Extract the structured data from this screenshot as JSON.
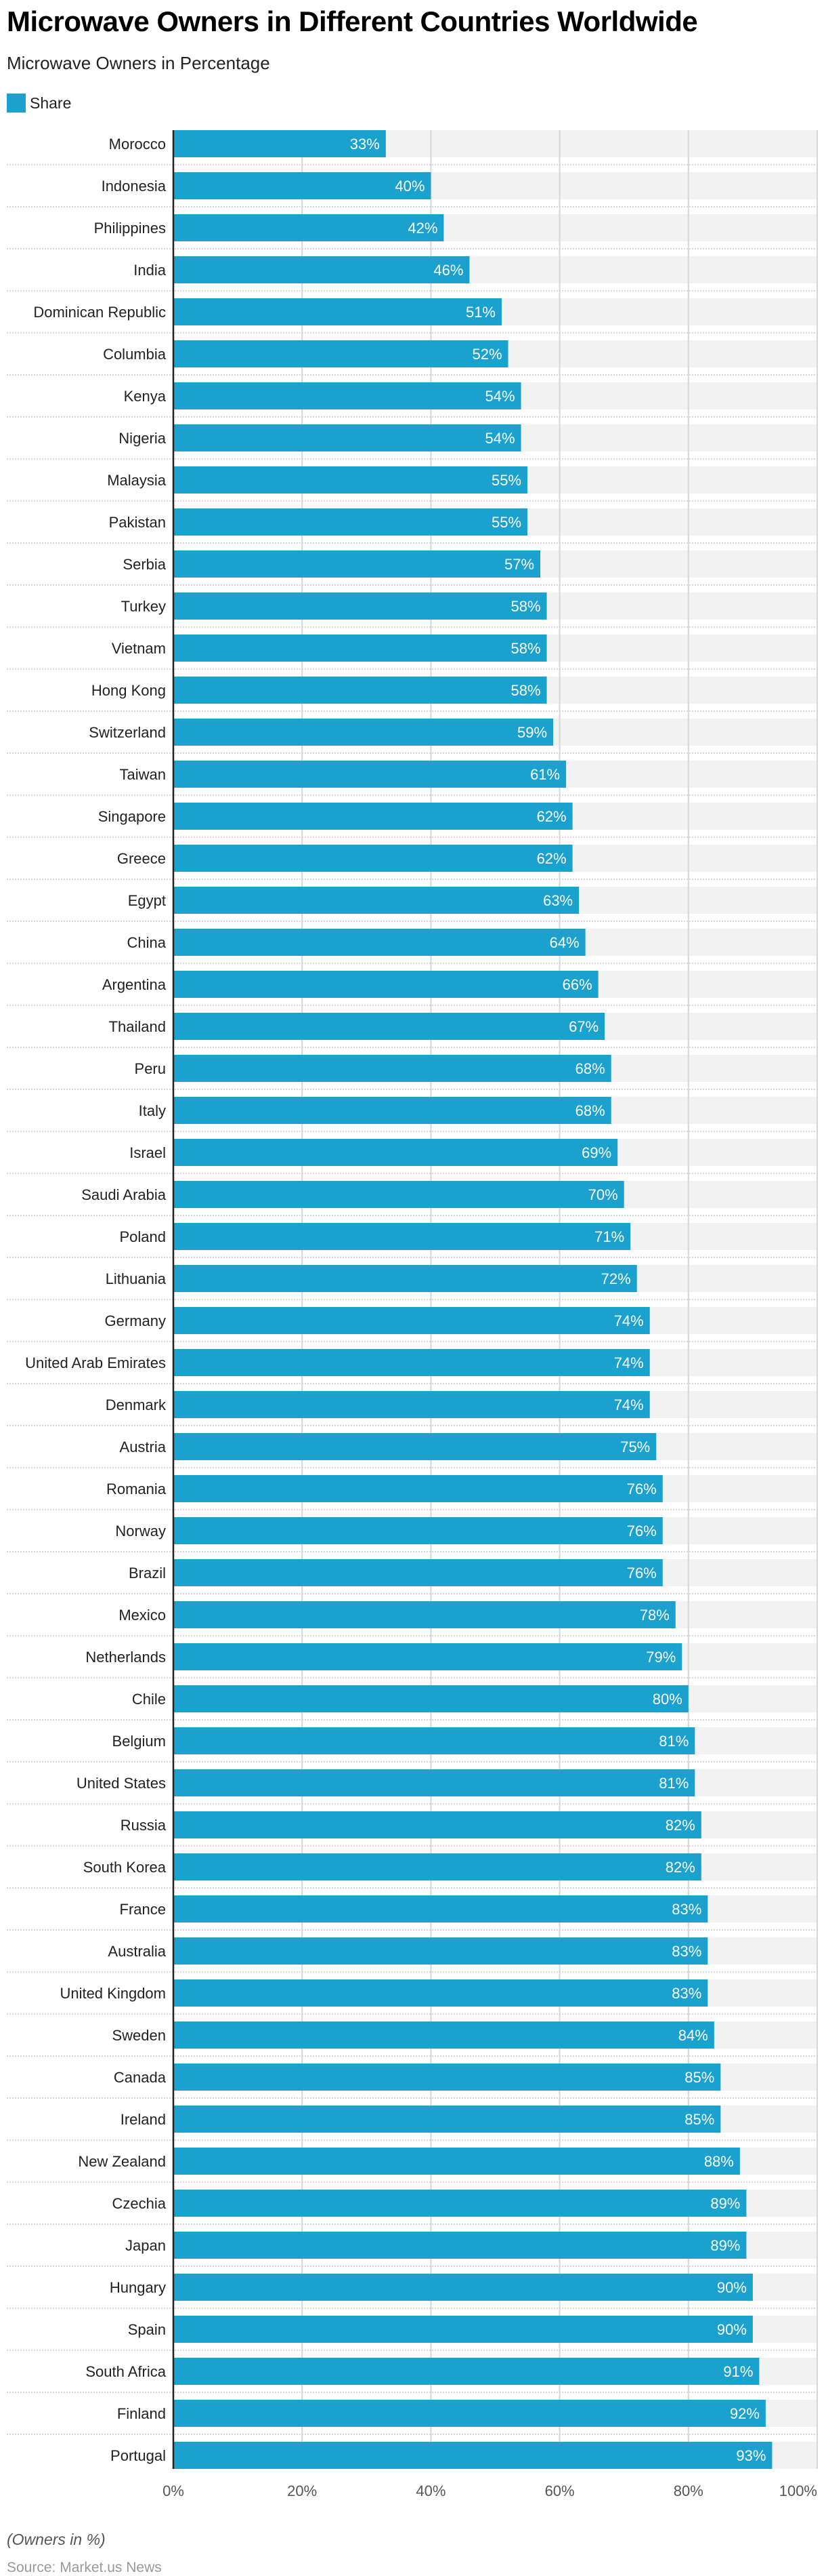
{
  "header": {
    "title": "Microwave Owners in Different Countries Worldwide",
    "subtitle": "Microwave Owners in Percentage"
  },
  "legend": {
    "items": [
      {
        "label": "Share",
        "color": "#1ba1cd"
      }
    ]
  },
  "footer": {
    "note": "(Owners in %)",
    "source": "Source: Market.us News"
  },
  "colors": {
    "bar": "#1ba1cd",
    "track": "#f2f2f2",
    "gridline": "#d6d6d6",
    "separator": "#cccccc",
    "axis": "#222222",
    "value_label": "#ffffff",
    "tick_label": "#555555"
  },
  "chart_data": {
    "type": "bar",
    "orientation": "horizontal",
    "title": "Microwave Owners in Different Countries Worldwide",
    "subtitle": "Microwave Owners in Percentage",
    "xlabel": "",
    "ylabel": "",
    "unit": "%",
    "xlim": [
      0,
      100
    ],
    "xticks": [
      0,
      20,
      40,
      60,
      80,
      100
    ],
    "xtick_labels": [
      "0%",
      "20%",
      "40%",
      "60%",
      "80%",
      "100%"
    ],
    "grid": true,
    "legend_position": "top-left",
    "series": [
      {
        "name": "Share",
        "color": "#1ba1cd",
        "values": [
          33,
          40,
          42,
          46,
          51,
          52,
          54,
          54,
          55,
          55,
          57,
          58,
          58,
          58,
          59,
          61,
          62,
          62,
          63,
          64,
          66,
          67,
          68,
          68,
          69,
          70,
          71,
          72,
          74,
          74,
          74,
          75,
          76,
          76,
          76,
          78,
          79,
          80,
          81,
          81,
          82,
          82,
          83,
          83,
          83,
          84,
          85,
          85,
          88,
          89,
          89,
          90,
          90,
          91,
          92,
          93
        ]
      }
    ],
    "categories": [
      "Morocco",
      "Indonesia",
      "Philippines",
      "India",
      "Dominican Republic",
      "Columbia",
      "Kenya",
      "Nigeria",
      "Malaysia",
      "Pakistan",
      "Serbia",
      "Turkey",
      "Vietnam",
      "Hong Kong",
      "Switzerland",
      "Taiwan",
      "Singapore",
      "Greece",
      "Egypt",
      "China",
      "Argentina",
      "Thailand",
      "Peru",
      "Italy",
      "Israel",
      "Saudi Arabia",
      "Poland",
      "Lithuania",
      "Germany",
      "United Arab Emirates",
      "Denmark",
      "Austria",
      "Romania",
      "Norway",
      "Brazil",
      "Mexico",
      "Netherlands",
      "Chile",
      "Belgium",
      "United States",
      "Russia",
      "South Korea",
      "France",
      "Australia",
      "United Kingdom",
      "Sweden",
      "Canada",
      "Ireland",
      "New Zealand",
      "Czechia",
      "Japan",
      "Hungary",
      "Spain",
      "South Africa",
      "Finland",
      "Portugal"
    ],
    "data_labels": [
      "33%",
      "40%",
      "42%",
      "46%",
      "51%",
      "52%",
      "54%",
      "54%",
      "55%",
      "55%",
      "57%",
      "58%",
      "58%",
      "58%",
      "59%",
      "61%",
      "62%",
      "62%",
      "63%",
      "64%",
      "66%",
      "67%",
      "68%",
      "68%",
      "69%",
      "70%",
      "71%",
      "72%",
      "74%",
      "74%",
      "74%",
      "75%",
      "76%",
      "76%",
      "76%",
      "78%",
      "79%",
      "80%",
      "81%",
      "81%",
      "82%",
      "82%",
      "83%",
      "83%",
      "83%",
      "84%",
      "85%",
      "85%",
      "88%",
      "89%",
      "89%",
      "90%",
      "90%",
      "91%",
      "92%",
      "93%"
    ]
  }
}
